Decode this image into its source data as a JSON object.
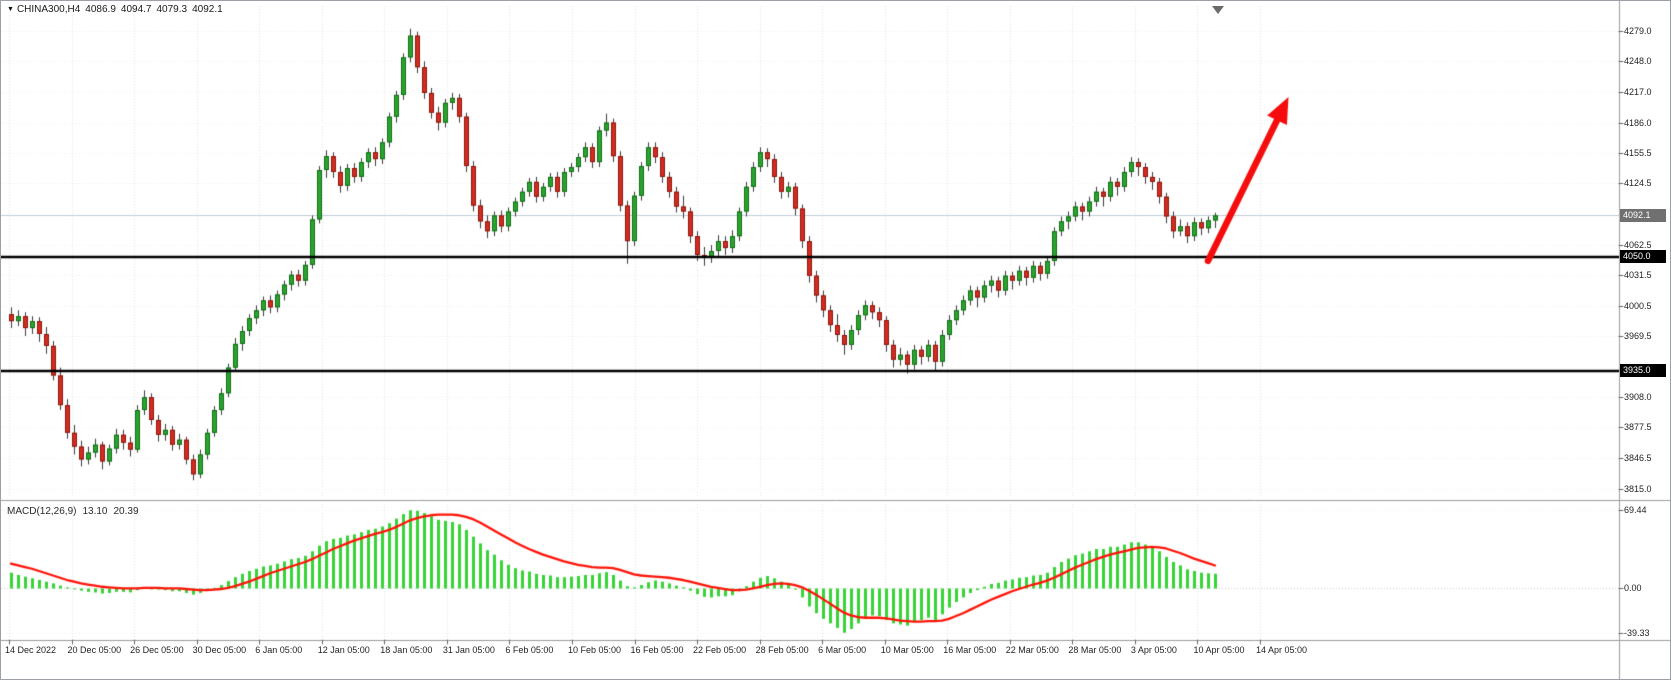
{
  "symbol_bar": {
    "symbol": "CHINA300,H4",
    "open": "4086.9",
    "high": "4094.7",
    "low": "4079.3",
    "close": "4092.1"
  },
  "macd_bar": {
    "label": "MACD(12,26,9)",
    "main_value": "13.10",
    "signal_value": "20.39"
  },
  "chart_data": {
    "type": "candlestick",
    "title": "CHINA300,H4",
    "timeframe": "H4",
    "price_axis_ticks": [
      "4279.0",
      "4248.0",
      "4217.0",
      "4186.0",
      "4155.5",
      "4124.5",
      "4062.5",
      "4031.5",
      "4000.5",
      "3969.5",
      "3908.0",
      "3877.5",
      "3846.5",
      "3815.0"
    ],
    "current_price": 4092.1,
    "current_price_label": "4092.1",
    "hlines": [
      4050.0,
      3935.0
    ],
    "hline_labels": [
      "4050.0",
      "3935.0"
    ],
    "macd_axis_ticks": [
      "69.44",
      "0.00",
      "-39.33"
    ],
    "time_labels": [
      "14 Dec 2022",
      "20 Dec 05:00",
      "26 Dec 05:00",
      "30 Dec 05:00",
      "6 Jan 05:00",
      "12 Jan 05:00",
      "18 Jan 05:00",
      "31 Jan 05:00",
      "6 Feb 05:00",
      "10 Feb 05:00",
      "16 Feb 05:00",
      "22 Feb 05:00",
      "28 Feb 05:00",
      "6 Mar 05:00",
      "10 Mar 05:00",
      "16 Mar 05:00",
      "22 Mar 05:00",
      "28 Mar 05:00",
      "3 Apr 05:00",
      "10 Apr 05:00",
      "14 Apr 05:00"
    ],
    "candles": [
      [
        3992,
        3999,
        3978,
        3985
      ],
      [
        3985,
        3996,
        3980,
        3990
      ],
      [
        3990,
        3994,
        3970,
        3978
      ],
      [
        3978,
        3990,
        3972,
        3985
      ],
      [
        3985,
        3989,
        3964,
        3972
      ],
      [
        3972,
        3979,
        3952,
        3960
      ],
      [
        3960,
        3965,
        3925,
        3930
      ],
      [
        3930,
        3938,
        3895,
        3900
      ],
      [
        3900,
        3906,
        3866,
        3872
      ],
      [
        3872,
        3880,
        3850,
        3858
      ],
      [
        3858,
        3864,
        3838,
        3845
      ],
      [
        3845,
        3858,
        3840,
        3852
      ],
      [
        3852,
        3866,
        3847,
        3860
      ],
      [
        3860,
        3863,
        3835,
        3843
      ],
      [
        3843,
        3860,
        3839,
        3856
      ],
      [
        3856,
        3876,
        3851,
        3870
      ],
      [
        3870,
        3875,
        3855,
        3862
      ],
      [
        3862,
        3868,
        3848,
        3855
      ],
      [
        3855,
        3900,
        3852,
        3895
      ],
      [
        3895,
        3915,
        3890,
        3908
      ],
      [
        3908,
        3912,
        3880,
        3885
      ],
      [
        3885,
        3890,
        3863,
        3870
      ],
      [
        3870,
        3881,
        3864,
        3875
      ],
      [
        3875,
        3879,
        3854,
        3860
      ],
      [
        3860,
        3871,
        3855,
        3865
      ],
      [
        3865,
        3868,
        3840,
        3845
      ],
      [
        3845,
        3850,
        3824,
        3830
      ],
      [
        3830,
        3855,
        3826,
        3850
      ],
      [
        3850,
        3876,
        3845,
        3872
      ],
      [
        3872,
        3899,
        3868,
        3895
      ],
      [
        3895,
        3917,
        3890,
        3912
      ],
      [
        3912,
        3942,
        3908,
        3938
      ],
      [
        3938,
        3968,
        3934,
        3962
      ],
      [
        3962,
        3980,
        3955,
        3975
      ],
      [
        3975,
        3992,
        3970,
        3988
      ],
      [
        3988,
        4001,
        3982,
        3996
      ],
      [
        3996,
        4010,
        3990,
        4006
      ],
      [
        4006,
        4011,
        3993,
        3999
      ],
      [
        3999,
        4016,
        3994,
        4012
      ],
      [
        4012,
        4026,
        4006,
        4022
      ],
      [
        4022,
        4036,
        4016,
        4032
      ],
      [
        4032,
        4037,
        4020,
        4026
      ],
      [
        4026,
        4046,
        4021,
        4042
      ],
      [
        4042,
        4092,
        4038,
        4088
      ],
      [
        4088,
        4142,
        4084,
        4138
      ],
      [
        4138,
        4158,
        4130,
        4152
      ],
      [
        4152,
        4156,
        4130,
        4136
      ],
      [
        4136,
        4142,
        4115,
        4122
      ],
      [
        4122,
        4144,
        4117,
        4140
      ],
      [
        4140,
        4145,
        4125,
        4131
      ],
      [
        4131,
        4150,
        4126,
        4146
      ],
      [
        4146,
        4160,
        4140,
        4156
      ],
      [
        4156,
        4161,
        4142,
        4149
      ],
      [
        4149,
        4170,
        4144,
        4166
      ],
      [
        4166,
        4196,
        4161,
        4192
      ],
      [
        4192,
        4218,
        4186,
        4214
      ],
      [
        4214,
        4256,
        4209,
        4252
      ],
      [
        4252,
        4281,
        4247,
        4274
      ],
      [
        4274,
        4278,
        4236,
        4242
      ],
      [
        4242,
        4248,
        4210,
        4216
      ],
      [
        4216,
        4221,
        4190,
        4196
      ],
      [
        4196,
        4202,
        4178,
        4186
      ],
      [
        4186,
        4210,
        4181,
        4206
      ],
      [
        4206,
        4216,
        4199,
        4211
      ],
      [
        4211,
        4215,
        4186,
        4192
      ],
      [
        4192,
        4196,
        4136,
        4142
      ],
      [
        4142,
        4147,
        4096,
        4102
      ],
      [
        4102,
        4108,
        4079,
        4086
      ],
      [
        4086,
        4092,
        4069,
        4076
      ],
      [
        4076,
        4096,
        4071,
        4092
      ],
      [
        4092,
        4097,
        4075,
        4081
      ],
      [
        4081,
        4100,
        4076,
        4096
      ],
      [
        4096,
        4110,
        4091,
        4106
      ],
      [
        4106,
        4120,
        4101,
        4116
      ],
      [
        4116,
        4130,
        4111,
        4126
      ],
      [
        4126,
        4131,
        4105,
        4111
      ],
      [
        4111,
        4125,
        4106,
        4121
      ],
      [
        4121,
        4135,
        4116,
        4131
      ],
      [
        4131,
        4136,
        4110,
        4116
      ],
      [
        4116,
        4140,
        4111,
        4136
      ],
      [
        4136,
        4145,
        4131,
        4141
      ],
      [
        4141,
        4155,
        4136,
        4151
      ],
      [
        4151,
        4166,
        4146,
        4161
      ],
      [
        4161,
        4165,
        4140,
        4146
      ],
      [
        4146,
        4182,
        4141,
        4178
      ],
      [
        4178,
        4195,
        4172,
        4186
      ],
      [
        4186,
        4190,
        4146,
        4152
      ],
      [
        4152,
        4157,
        4096,
        4102
      ],
      [
        4102,
        4107,
        4043,
        4066
      ],
      [
        4066,
        4116,
        4061,
        4112
      ],
      [
        4112,
        4146,
        4107,
        4142
      ],
      [
        4142,
        4166,
        4137,
        4161
      ],
      [
        4161,
        4166,
        4145,
        4151
      ],
      [
        4151,
        4156,
        4125,
        4131
      ],
      [
        4131,
        4136,
        4110,
        4116
      ],
      [
        4116,
        4121,
        4095,
        4101
      ],
      [
        4101,
        4112,
        4089,
        4096
      ],
      [
        4096,
        4100,
        4064,
        4071
      ],
      [
        4071,
        4076,
        4046,
        4052
      ],
      [
        4052,
        4060,
        4041,
        4049
      ],
      [
        4049,
        4062,
        4044,
        4056
      ],
      [
        4056,
        4072,
        4051,
        4066
      ],
      [
        4066,
        4071,
        4052,
        4059
      ],
      [
        4059,
        4077,
        4054,
        4071
      ],
      [
        4071,
        4100,
        4066,
        4096
      ],
      [
        4096,
        4126,
        4091,
        4121
      ],
      [
        4121,
        4146,
        4116,
        4141
      ],
      [
        4141,
        4161,
        4136,
        4156
      ],
      [
        4156,
        4160,
        4141,
        4149
      ],
      [
        4149,
        4154,
        4125,
        4131
      ],
      [
        4131,
        4136,
        4109,
        4116
      ],
      [
        4116,
        4126,
        4110,
        4121
      ],
      [
        4121,
        4125,
        4092,
        4099
      ],
      [
        4099,
        4103,
        4059,
        4066
      ],
      [
        4066,
        4071,
        4024,
        4031
      ],
      [
        4031,
        4036,
        4004,
        4011
      ],
      [
        4011,
        4016,
        3989,
        3996
      ],
      [
        3996,
        4001,
        3974,
        3981
      ],
      [
        3981,
        3992,
        3964,
        3971
      ],
      [
        3971,
        3976,
        3951,
        3961
      ],
      [
        3961,
        3981,
        3956,
        3976
      ],
      [
        3976,
        3996,
        3971,
        3991
      ],
      [
        3991,
        4006,
        3986,
        4001
      ],
      [
        4001,
        4005,
        3987,
        3994
      ],
      [
        3994,
        3999,
        3979,
        3986
      ],
      [
        3986,
        3990,
        3954,
        3961
      ],
      [
        3961,
        3966,
        3938,
        3946
      ],
      [
        3946,
        3958,
        3940,
        3951
      ],
      [
        3951,
        3955,
        3932,
        3941
      ],
      [
        3941,
        3961,
        3936,
        3956
      ],
      [
        3956,
        3960,
        3941,
        3949
      ],
      [
        3949,
        3966,
        3944,
        3961
      ],
      [
        3961,
        3965,
        3934,
        3944
      ],
      [
        3944,
        3976,
        3939,
        3971
      ],
      [
        3971,
        3991,
        3966,
        3986
      ],
      [
        3986,
        4001,
        3981,
        3996
      ],
      [
        3996,
        4011,
        3991,
        4006
      ],
      [
        4006,
        4021,
        4001,
        4016
      ],
      [
        4016,
        4020,
        3999,
        4009
      ],
      [
        4009,
        4026,
        4004,
        4021
      ],
      [
        4021,
        4031,
        4014,
        4026
      ],
      [
        4026,
        4030,
        4009,
        4016
      ],
      [
        4016,
        4036,
        4011,
        4031
      ],
      [
        4031,
        4035,
        4017,
        4026
      ],
      [
        4026,
        4041,
        4021,
        4036
      ],
      [
        4036,
        4040,
        4021,
        4029
      ],
      [
        4029,
        4046,
        4024,
        4041
      ],
      [
        4041,
        4045,
        4026,
        4033
      ],
      [
        4033,
        4051,
        4028,
        4046
      ],
      [
        4046,
        4080,
        4041,
        4076
      ],
      [
        4076,
        4091,
        4071,
        4086
      ],
      [
        4086,
        4096,
        4078,
        4091
      ],
      [
        4091,
        4106,
        4086,
        4101
      ],
      [
        4101,
        4105,
        4087,
        4096
      ],
      [
        4096,
        4111,
        4091,
        4106
      ],
      [
        4106,
        4121,
        4101,
        4116
      ],
      [
        4116,
        4120,
        4101,
        4111
      ],
      [
        4111,
        4131,
        4106,
        4126
      ],
      [
        4126,
        4130,
        4112,
        4121
      ],
      [
        4121,
        4141,
        4116,
        4136
      ],
      [
        4136,
        4151,
        4131,
        4146
      ],
      [
        4146,
        4150,
        4132,
        4141
      ],
      [
        4141,
        4145,
        4124,
        4131
      ],
      [
        4131,
        4136,
        4118,
        4126
      ],
      [
        4126,
        4130,
        4104,
        4111
      ],
      [
        4111,
        4115,
        4084,
        4091
      ],
      [
        4091,
        4096,
        4069,
        4076
      ],
      [
        4076,
        4088,
        4071,
        4081
      ],
      [
        4081,
        4085,
        4064,
        4071
      ],
      [
        4071,
        4090,
        4066,
        4085
      ],
      [
        4085,
        4089,
        4072,
        4079
      ],
      [
        4079,
        4091,
        4074,
        4087
      ],
      [
        4086.9,
        4094.7,
        4079.3,
        4092.1
      ]
    ],
    "macd_histogram": [
      14,
      12,
      10.5,
      9,
      7.5,
      6,
      4.5,
      2.5,
      1,
      -0.5,
      -2,
      -3,
      -3.5,
      -4.5,
      -4,
      -3,
      -3,
      -3.5,
      -1.5,
      0.5,
      0,
      -1,
      -1.5,
      -2.5,
      -2.5,
      -4,
      -5.5,
      -4,
      -2,
      0.5,
      3,
      6.5,
      10,
      13,
      15.5,
      17.5,
      19.5,
      20.5,
      22,
      24,
      26,
      27,
      29,
      33,
      38,
      42,
      44,
      45,
      47,
      48,
      50,
      52,
      53,
      55,
      58,
      62,
      66,
      69.4,
      69,
      67,
      64,
      61,
      60,
      59,
      57,
      52,
      46,
      40,
      34,
      30,
      25,
      21,
      18,
      16,
      15,
      13,
      12,
      11.5,
      10,
      10,
      10.5,
      11,
      12,
      12,
      13.5,
      14.5,
      12,
      7,
      2,
      1,
      3,
      5.5,
      7,
      6,
      4.5,
      2.5,
      1,
      -2,
      -5,
      -7.5,
      -8,
      -7,
      -7,
      -6,
      -2.5,
      2,
      6,
      9.5,
      11,
      9,
      6,
      3.5,
      -1,
      -8,
      -16,
      -22,
      -27,
      -31,
      -35,
      -39.3,
      -36,
      -31,
      -27,
      -24,
      -24.5,
      -28,
      -31,
      -32,
      -33,
      -30,
      -28,
      -26,
      -28,
      -23,
      -17,
      -12,
      -8,
      -4,
      -1.5,
      1.5,
      4,
      5,
      7,
      8,
      9.5,
      10,
      11.5,
      12,
      14,
      19,
      23.5,
      26.5,
      29.5,
      31,
      33,
      35,
      35,
      37,
      37,
      39,
      41,
      41,
      39,
      37,
      33,
      28,
      23.5,
      20.5,
      17,
      15.5,
      14,
      13.5,
      13.1
    ],
    "macd_signal": [
      22,
      20.5,
      19,
      17.5,
      15.5,
      13.5,
      11.5,
      9.5,
      7.5,
      6,
      4.5,
      3.5,
      2.5,
      1.5,
      1,
      0.5,
      0,
      0,
      0,
      0.5,
      0.5,
      0.5,
      0,
      0,
      0,
      -0.5,
      -1,
      -1.5,
      -1.5,
      -1,
      -0.5,
      0.5,
      2,
      4,
      6,
      8.5,
      11,
      13.5,
      15.5,
      17.5,
      19.5,
      21.5,
      23.5,
      26,
      29,
      32,
      35,
      37.5,
      40,
      42.5,
      44.5,
      46.5,
      48.5,
      50,
      52,
      54.5,
      57.5,
      60.5,
      62.5,
      64,
      65,
      65.5,
      65.5,
      65.5,
      65,
      63.5,
      61.5,
      58.5,
      55,
      51.5,
      48,
      44.5,
      41,
      38,
      35,
      32.5,
      30,
      28,
      26,
      24,
      22.5,
      21,
      20,
      19,
      18.5,
      18.5,
      18,
      16.5,
      14.5,
      12.5,
      11.5,
      11,
      10.5,
      10,
      9.5,
      8.5,
      7.5,
      6,
      4.5,
      3,
      1.5,
      0.5,
      -0.5,
      -1.5,
      -1.5,
      -1,
      0,
      1.5,
      3,
      4,
      4.5,
      4,
      3,
      1,
      -2,
      -5.5,
      -9.5,
      -13.5,
      -17.5,
      -21.5,
      -24,
      -25.5,
      -26,
      -26,
      -26,
      -26.5,
      -27.5,
      -28.5,
      -29,
      -29.5,
      -29.5,
      -29,
      -29,
      -28.5,
      -27,
      -24.5,
      -22,
      -19,
      -16,
      -13,
      -10,
      -7.5,
      -5,
      -2.5,
      -0.5,
      1.5,
      3.5,
      5,
      7,
      9.5,
      12.5,
      15.5,
      18.5,
      21,
      23.5,
      26,
      28,
      30,
      31.5,
      33,
      34.5,
      36,
      36.5,
      37,
      36.5,
      35.5,
      33.5,
      31.5,
      29,
      26.5,
      24.5,
      22.5,
      20.39
    ],
    "annotations": {
      "trend_arrow": {
        "direction": "up",
        "from_bar": 171,
        "from_price": 4046,
        "to_bar": 182.5,
        "to_price": 4212
      }
    },
    "colors": {
      "up": "#29a52e",
      "up_border": "#146b17",
      "down": "#d62c1f",
      "down_border": "#871710",
      "wick": "#3d3d3d",
      "histogram": "#38d438",
      "signal_line": "#ff1408",
      "hline": "#000000",
      "current_price_line": "#c2ced6",
      "arrow": "#f50c0c",
      "grid": "#e6e6e6",
      "current_box_bg": "#707070",
      "hline_box_bg": "#000000"
    }
  }
}
